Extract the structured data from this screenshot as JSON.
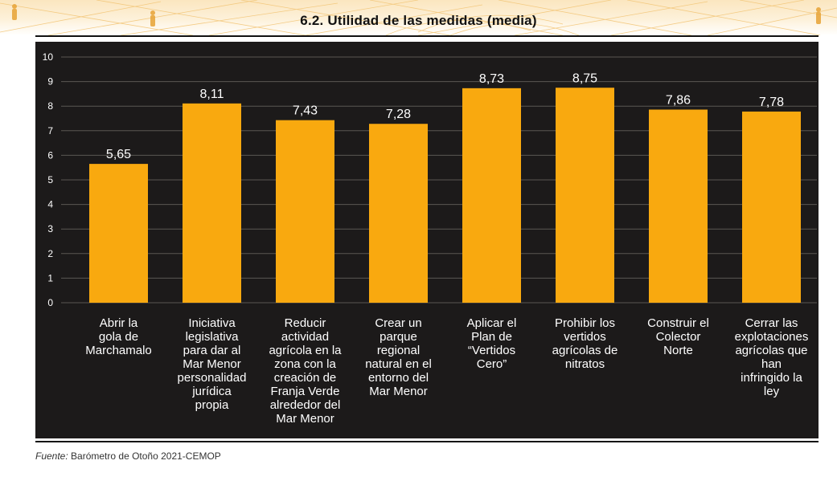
{
  "header": {
    "title": "6.2. Utilidad de las medidas (media)"
  },
  "colors": {
    "bar": "#f9a90f",
    "panel_background": "#1c1a1a",
    "grid": "#5a5753",
    "text": "#ffffff"
  },
  "chart_data": {
    "type": "bar",
    "title": "6.2. Utilidad de las medidas (media)",
    "xlabel": "",
    "ylabel": "",
    "ylim": [
      0,
      10
    ],
    "yticks": [
      0,
      1,
      2,
      3,
      4,
      5,
      6,
      7,
      8,
      9,
      10
    ],
    "grid": true,
    "legend": "none",
    "categories": [
      [
        "Abrir la",
        "gola de",
        "Marchamalo"
      ],
      [
        "Iniciativa",
        "legislativa",
        "para dar al",
        "Mar Menor",
        "personalidad",
        "jurídica",
        "propia"
      ],
      [
        "Reducir",
        "actividad",
        "agrícola en la",
        "zona con la",
        "creación de",
        "Franja Verde",
        "alrededor del",
        "Mar Menor"
      ],
      [
        "Crear un",
        "parque",
        "regional",
        "natural en el",
        "entorno del",
        "Mar Menor"
      ],
      [
        "Aplicar el",
        "Plan de",
        "“Vertidos",
        "Cero”"
      ],
      [
        "Prohibir los",
        "vertidos",
        "agrícolas de",
        "nitratos"
      ],
      [
        "Construir el",
        "Colector",
        "Norte"
      ],
      [
        "Cerrar las",
        "explotaciones",
        "agrícolas que",
        "han",
        "infringido la",
        "ley"
      ]
    ],
    "values": [
      5.65,
      8.11,
      7.43,
      7.28,
      8.73,
      8.75,
      7.86,
      7.78
    ],
    "value_labels": [
      "5,65",
      "8,11",
      "7,43",
      "7,28",
      "8,73",
      "8,75",
      "7,86",
      "7,78"
    ]
  },
  "footer": {
    "source_label": "Fuente:",
    "source_text": " Barómetro de Otoño 2021-CEMOP"
  }
}
